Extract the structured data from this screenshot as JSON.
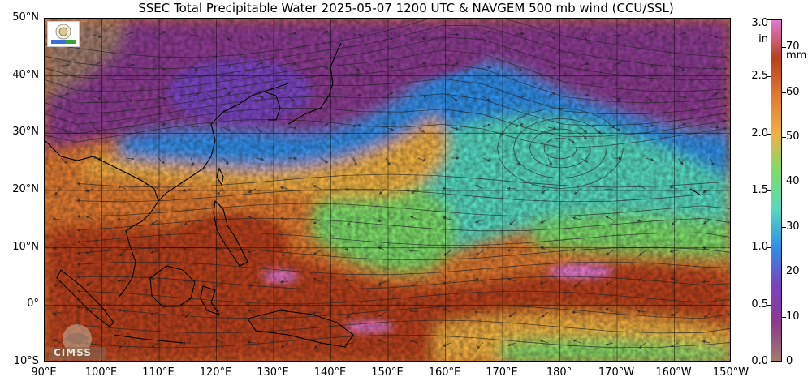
{
  "title": "SSEC Total Precipitable Water  2025-05-07 1200 UTC & NAVGEM 500 mb wind (CCU/SSL)",
  "map": {
    "extent": {
      "lon_min": 90,
      "lon_max": 210,
      "lat_min": -10,
      "lat_max": 50
    },
    "lat_ticks": [
      {
        "value": 50,
        "label": "50°N"
      },
      {
        "value": 40,
        "label": "40°N"
      },
      {
        "value": 30,
        "label": "30°N"
      },
      {
        "value": 20,
        "label": "20°N"
      },
      {
        "value": 10,
        "label": "10°N"
      },
      {
        "value": 0,
        "label": "0°"
      },
      {
        "value": -10,
        "label": "10°S"
      }
    ],
    "lon_ticks": [
      {
        "value": 90,
        "label": "90°E"
      },
      {
        "value": 100,
        "label": "100°E"
      },
      {
        "value": 110,
        "label": "110°E"
      },
      {
        "value": 120,
        "label": "120°E"
      },
      {
        "value": 130,
        "label": "130°E"
      },
      {
        "value": 140,
        "label": "140°E"
      },
      {
        "value": 150,
        "label": "150°E"
      },
      {
        "value": 160,
        "label": "160°E"
      },
      {
        "value": 170,
        "label": "170°E"
      },
      {
        "value": 180,
        "label": "180°"
      },
      {
        "value": 190,
        "label": "170°W"
      },
      {
        "value": 200,
        "label": "160°W"
      },
      {
        "value": 210,
        "label": "150°W"
      }
    ],
    "colors": {
      "dry": "#a07b6c",
      "very_low": "#8b3a8f",
      "low": "#7a44c0",
      "mid_low": "#2f8ee8",
      "mid": "#56d9c0",
      "mid_high": "#7cdc6a",
      "moist": "#f0b042",
      "wet": "#e07a30",
      "very_wet": "#b8401e",
      "extreme": "#e27ad6"
    }
  },
  "colorbar": {
    "unit_in": "in",
    "unit_mm": "mm",
    "inch_ticks": [
      {
        "value": 0.0,
        "label": "0.0"
      },
      {
        "value": 0.5,
        "label": "0.5"
      },
      {
        "value": 1.0,
        "label": "1.0"
      },
      {
        "value": 1.5,
        "label": "1.5"
      },
      {
        "value": 2.0,
        "label": "2.0"
      },
      {
        "value": 2.5,
        "label": "2.5"
      },
      {
        "value": 3.0,
        "label": "3.0"
      }
    ],
    "mm_ticks": [
      {
        "value": 0,
        "label": "0"
      },
      {
        "value": 10,
        "label": "10"
      },
      {
        "value": 20,
        "label": "20"
      },
      {
        "value": 30,
        "label": "30"
      },
      {
        "value": 40,
        "label": "40"
      },
      {
        "value": 50,
        "label": "50"
      },
      {
        "value": 60,
        "label": "60"
      },
      {
        "value": 70,
        "label": "70"
      }
    ],
    "max_mm": 76.2,
    "gradient": [
      "#a07b6c",
      "#8b3a8f",
      "#7a44c0",
      "#2f8ee8",
      "#56d9c0",
      "#7cdc6a",
      "#f0b042",
      "#e07a30",
      "#b8401e",
      "#e27ad6"
    ]
  },
  "logos": {
    "cimss_text": "CIMSS"
  }
}
